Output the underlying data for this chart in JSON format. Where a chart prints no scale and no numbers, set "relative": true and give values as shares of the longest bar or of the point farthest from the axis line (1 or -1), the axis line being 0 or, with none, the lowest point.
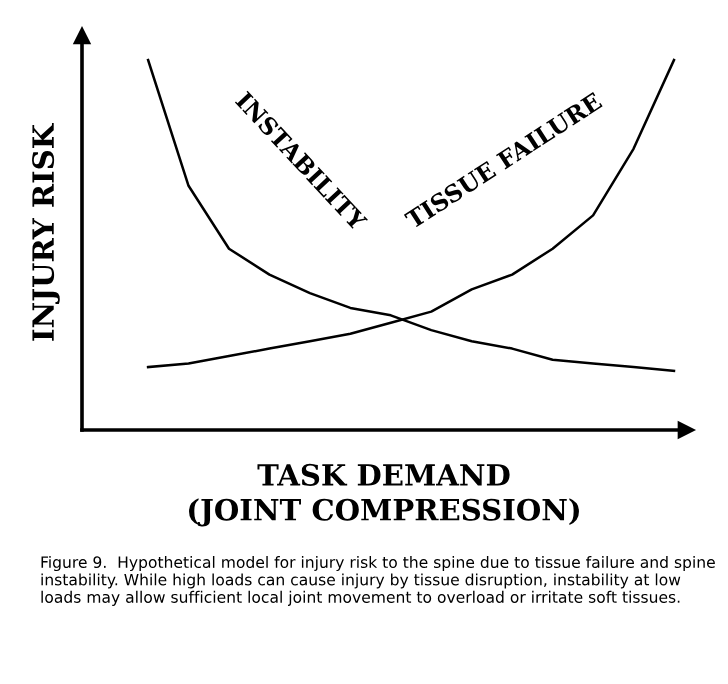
{
  "chart_data": {
    "type": "line",
    "relative": true,
    "tick_labels": false,
    "xlabel": "TASK DEMAND\n(JOINT COMPRESSION)",
    "ylabel": "INJURY RISK",
    "categories": [
      null,
      null,
      null,
      null,
      null,
      null,
      null,
      null,
      null,
      null,
      null,
      null,
      null,
      null
    ],
    "series": [
      {
        "name": "INSTABILITY",
        "color": "#000000",
        "values": [
          1.0,
          0.66,
          0.49,
          0.42,
          0.37,
          0.33,
          0.31,
          0.27,
          0.24,
          0.22,
          0.19,
          0.18,
          0.17,
          0.16
        ]
      },
      {
        "name": "TISSUE FAILURE",
        "color": "#000000",
        "values": [
          0.17,
          0.18,
          0.2,
          0.22,
          0.24,
          0.26,
          0.29,
          0.32,
          0.38,
          0.42,
          0.49,
          0.58,
          0.76,
          1.0
        ]
      }
    ],
    "annotations": [
      "Figure 9.  Hypothetical model for injury risk to the spine due to tissue failure and spine instability. While high loads can cause injury by tissue disruption, instability at low loads may allow sufficient local joint movement to overload or irritate soft tissues."
    ]
  }
}
